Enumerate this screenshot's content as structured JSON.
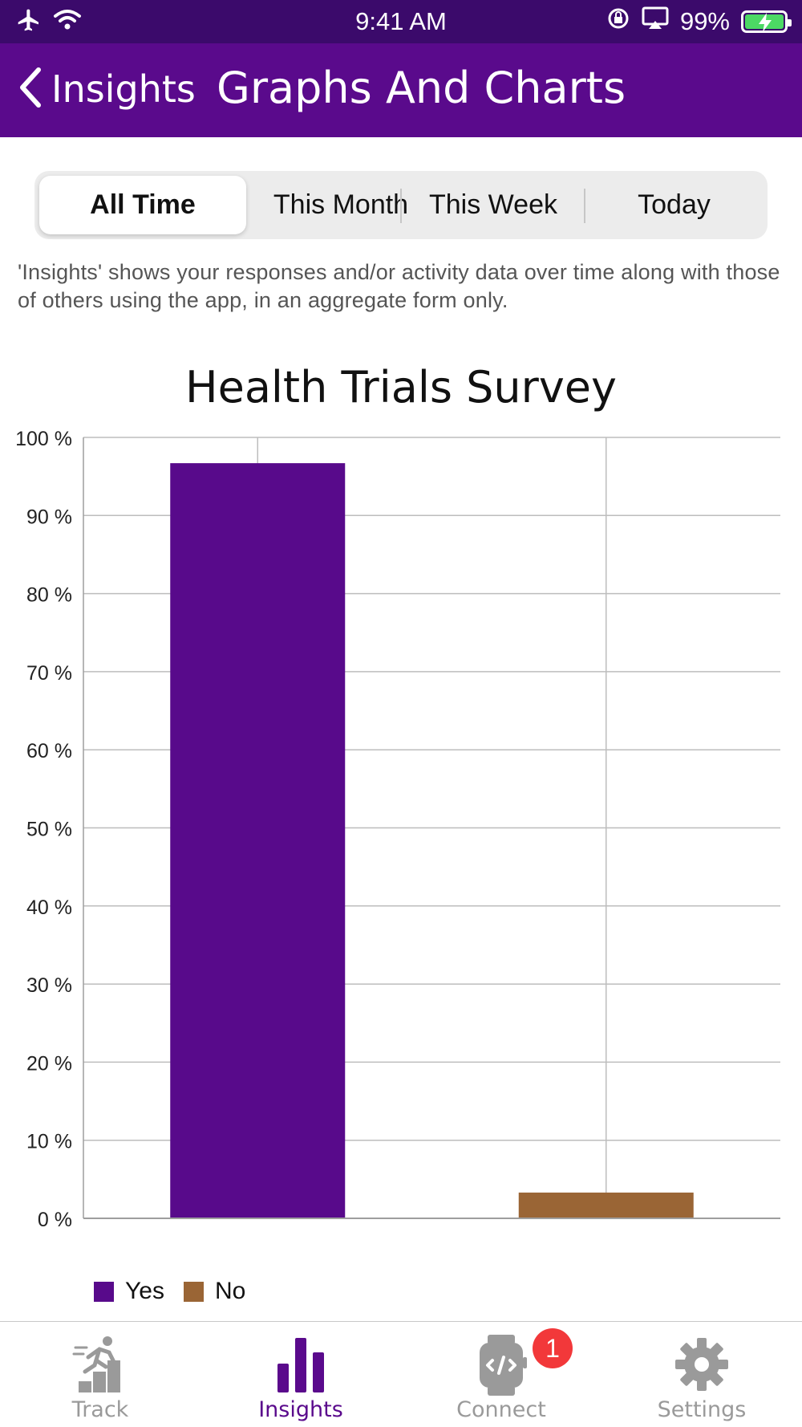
{
  "status_bar": {
    "time": "9:41 AM",
    "battery_percent": "99%",
    "battery_level": 0.99,
    "icons": [
      "airplane-icon",
      "wifi-icon",
      "orientation-lock-icon",
      "airplay-icon",
      "battery-charging-icon"
    ]
  },
  "nav": {
    "back_label": "Insights",
    "title": "Graphs And Charts"
  },
  "segments": {
    "items": [
      "All Time",
      "This Month",
      "This Week",
      "Today"
    ],
    "selected": "All Time"
  },
  "description": "'Insights' shows your responses and/or activity data over time along with those of others using the app, in an aggregate form only.",
  "chart_data": {
    "type": "bar",
    "title": "Health Trials Survey",
    "categories": [
      "Yes",
      "No"
    ],
    "values": [
      96.7,
      3.3
    ],
    "unit": "%",
    "ylim": [
      0,
      100
    ],
    "yticks": [
      "0 %",
      "10 %",
      "20 %",
      "30 %",
      "40 %",
      "50 %",
      "60 %",
      "70 %",
      "80 %",
      "90 %",
      "100 %"
    ],
    "grid": true,
    "legend_position": "bottom-left",
    "colors": [
      "#580a8b",
      "#9a6535"
    ],
    "xlabel": "",
    "ylabel": ""
  },
  "legend": {
    "yes_label": "Yes",
    "no_label": "No"
  },
  "tab_bar": {
    "items": [
      {
        "label": "Track",
        "icon": "track-icon"
      },
      {
        "label": "Insights",
        "icon": "insights-icon"
      },
      {
        "label": "Connect",
        "icon": "connect-watch-icon"
      },
      {
        "label": "Settings",
        "icon": "gear-icon"
      }
    ],
    "active": "Insights",
    "connect_badge": "1"
  },
  "colors": {
    "status_bar": "#3b0a6b",
    "nav_bar": "#5a0a8c",
    "accent": "#5a0a8c",
    "badge": "#f2383a"
  }
}
